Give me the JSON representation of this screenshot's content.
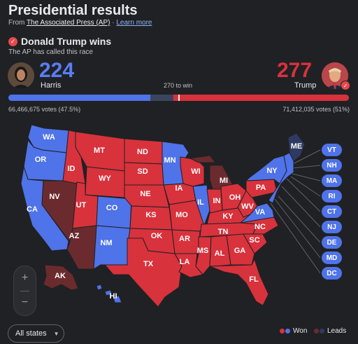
{
  "header": {
    "title": "Presidential results",
    "source_prefix": "From",
    "source_name": "The Associated Press (AP)",
    "learn_more": "Learn more",
    "winner": "Donald Trump wins",
    "called": "The AP has called this race"
  },
  "candidates": {
    "dem": {
      "name": "Harris",
      "electoral_votes": "224",
      "votes": "66,466,675 votes (47.5%)",
      "color": "#4f73e8"
    },
    "rep": {
      "name": "Trump",
      "electoral_votes": "277",
      "votes": "71,412,035 votes (51%)",
      "color": "#d8323c"
    }
  },
  "threshold": {
    "label": "270 to win",
    "value": 270,
    "total": 538
  },
  "map": {
    "states": [
      {
        "abbr": "WA",
        "winner": "dem"
      },
      {
        "abbr": "OR",
        "winner": "dem"
      },
      {
        "abbr": "CA",
        "winner": "dem"
      },
      {
        "abbr": "NV",
        "winner": "rep-lead"
      },
      {
        "abbr": "ID",
        "winner": "rep"
      },
      {
        "abbr": "MT",
        "winner": "rep"
      },
      {
        "abbr": "WY",
        "winner": "rep"
      },
      {
        "abbr": "UT",
        "winner": "rep"
      },
      {
        "abbr": "AZ",
        "winner": "rep-lead"
      },
      {
        "abbr": "CO",
        "winner": "dem"
      },
      {
        "abbr": "NM",
        "winner": "dem"
      },
      {
        "abbr": "ND",
        "winner": "rep"
      },
      {
        "abbr": "SD",
        "winner": "rep"
      },
      {
        "abbr": "NE",
        "winner": "rep"
      },
      {
        "abbr": "KS",
        "winner": "rep"
      },
      {
        "abbr": "OK",
        "winner": "rep"
      },
      {
        "abbr": "TX",
        "winner": "rep"
      },
      {
        "abbr": "MN",
        "winner": "dem"
      },
      {
        "abbr": "IA",
        "winner": "rep"
      },
      {
        "abbr": "MO",
        "winner": "rep"
      },
      {
        "abbr": "AR",
        "winner": "rep"
      },
      {
        "abbr": "LA",
        "winner": "rep"
      },
      {
        "abbr": "WI",
        "winner": "rep"
      },
      {
        "abbr": "IL",
        "winner": "dem"
      },
      {
        "abbr": "MI",
        "winner": "rep-lead"
      },
      {
        "abbr": "IN",
        "winner": "rep"
      },
      {
        "abbr": "OH",
        "winner": "rep"
      },
      {
        "abbr": "KY",
        "winner": "rep"
      },
      {
        "abbr": "TN",
        "winner": "rep"
      },
      {
        "abbr": "MS",
        "winner": "rep"
      },
      {
        "abbr": "AL",
        "winner": "rep"
      },
      {
        "abbr": "GA",
        "winner": "rep"
      },
      {
        "abbr": "FL",
        "winner": "rep"
      },
      {
        "abbr": "SC",
        "winner": "rep"
      },
      {
        "abbr": "NC",
        "winner": "rep"
      },
      {
        "abbr": "VA",
        "winner": "dem"
      },
      {
        "abbr": "WV",
        "winner": "rep"
      },
      {
        "abbr": "PA",
        "winner": "rep"
      },
      {
        "abbr": "NY",
        "winner": "dem"
      },
      {
        "abbr": "ME",
        "winner": "dem-lead"
      },
      {
        "abbr": "AK",
        "winner": "rep-lead"
      },
      {
        "abbr": "HI",
        "winner": "dem"
      }
    ],
    "small_states": [
      "VT",
      "NH",
      "MA",
      "RI",
      "CT",
      "NJ",
      "DE",
      "MD",
      "DC"
    ],
    "colors": {
      "dem": "#4f73e8",
      "rep": "#d8323c",
      "dem-lead": "#2f3a63",
      "rep-lead": "#6b2b2e"
    }
  },
  "controls": {
    "zoom_in": "+",
    "zoom_out": "−",
    "filter": "All states",
    "legend_won": "Won",
    "legend_leads": "Leads"
  }
}
